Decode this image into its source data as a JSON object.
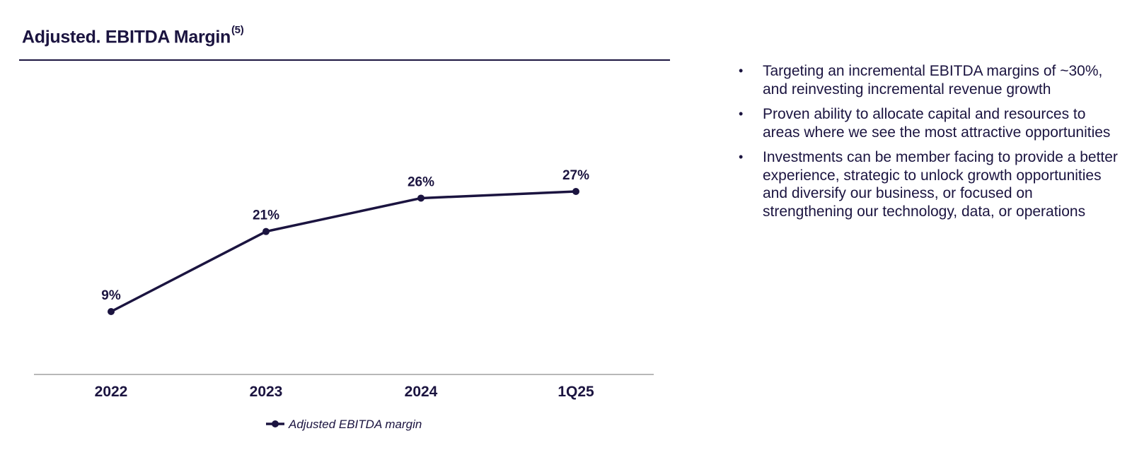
{
  "header": {
    "title": "Adjusted. EBITDA Margin",
    "footnote": "(5)"
  },
  "colors": {
    "line": "#1b1440",
    "axis": "#b8b8b8",
    "text": "#1b1440"
  },
  "chart_data": {
    "type": "line",
    "categories": [
      "2022",
      "2023",
      "2024",
      "1Q25"
    ],
    "series": [
      {
        "name": "Adjusted EBITDA margin",
        "values": [
          9,
          21,
          26,
          27
        ],
        "labels": [
          "9%",
          "21%",
          "26%",
          "27%"
        ]
      }
    ],
    "unit": "%",
    "ylim": [
      0,
      30
    ],
    "grid": false,
    "legend": "bottom-center"
  },
  "bullets": [
    "Targeting an incremental EBITDA margins of ~30%, and reinvesting incremental revenue growth",
    "Proven ability to allocate capital and resources to areas where we see the most attractive opportunities",
    "Investments can be member facing to provide a better experience, strategic to unlock growth opportunities and diversify our business, or focused on strengthening our technology, data, or operations"
  ]
}
